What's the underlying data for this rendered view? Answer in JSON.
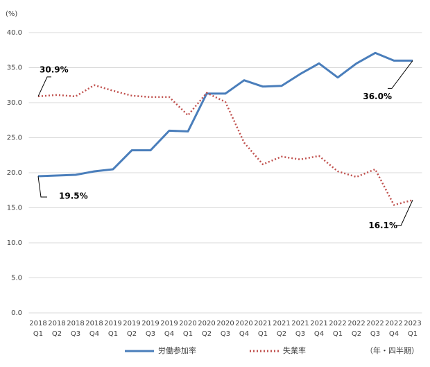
{
  "chart_data": {
    "type": "line",
    "y_unit": "(%)",
    "x_unit": "（年・四半期）",
    "categories": [
      [
        "2018",
        "Q1"
      ],
      [
        "2018",
        "Q2"
      ],
      [
        "2018",
        "Q3"
      ],
      [
        "2018",
        "Q4"
      ],
      [
        "2019",
        "Q1"
      ],
      [
        "2019",
        "Q2"
      ],
      [
        "2019",
        "Q3"
      ],
      [
        "2019",
        "Q4"
      ],
      [
        "2020",
        "Q1"
      ],
      [
        "2020",
        "Q2"
      ],
      [
        "2020",
        "Q3"
      ],
      [
        "2020",
        "Q4"
      ],
      [
        "2021",
        "Q1"
      ],
      [
        "2021",
        "Q2"
      ],
      [
        "2021",
        "Q3"
      ],
      [
        "2021",
        "Q4"
      ],
      [
        "2022",
        "Q1"
      ],
      [
        "2022",
        "Q2"
      ],
      [
        "2022",
        "Q3"
      ],
      [
        "2022",
        "Q4"
      ],
      [
        "2023",
        "Q1"
      ]
    ],
    "series": [
      {
        "name": "労働参加率",
        "color": "#4a7ebb",
        "dash": false,
        "values": [
          19.5,
          19.6,
          19.7,
          20.2,
          20.5,
          23.2,
          23.2,
          26.0,
          25.9,
          31.3,
          31.3,
          33.2,
          32.3,
          32.4,
          34.1,
          35.6,
          33.6,
          35.6,
          37.1,
          36.0,
          36.0
        ],
        "value_labels": [
          "19.5%",
          null,
          null,
          null,
          null,
          null,
          null,
          null,
          null,
          null,
          null,
          null,
          null,
          null,
          null,
          null,
          null,
          null,
          null,
          null,
          "36.0%"
        ]
      },
      {
        "name": "失業率",
        "color": "#c0504d",
        "dash": true,
        "values": [
          30.9,
          31.1,
          30.9,
          32.5,
          31.7,
          31.0,
          30.8,
          30.8,
          28.2,
          31.4,
          30.1,
          24.3,
          21.2,
          22.3,
          21.9,
          22.4,
          20.2,
          19.4,
          20.5,
          15.4,
          16.1
        ],
        "value_labels": [
          "30.9%",
          null,
          null,
          null,
          null,
          null,
          null,
          null,
          null,
          null,
          null,
          null,
          null,
          null,
          null,
          null,
          null,
          null,
          null,
          null,
          "16.1%"
        ]
      }
    ],
    "ylim": [
      0,
      40
    ],
    "yticks": [
      {
        "value": 0,
        "label": "0.0"
      },
      {
        "value": 5,
        "label": "5.0"
      },
      {
        "value": 10,
        "label": "10.0"
      },
      {
        "value": 15,
        "label": "15.0"
      },
      {
        "value": 20,
        "label": "20.0"
      },
      {
        "value": 25,
        "label": "25.0"
      },
      {
        "value": 30,
        "label": "30.0"
      },
      {
        "value": 35,
        "label": "35.0"
      },
      {
        "value": 40,
        "label": "40.0"
      }
    ],
    "grid": true
  }
}
